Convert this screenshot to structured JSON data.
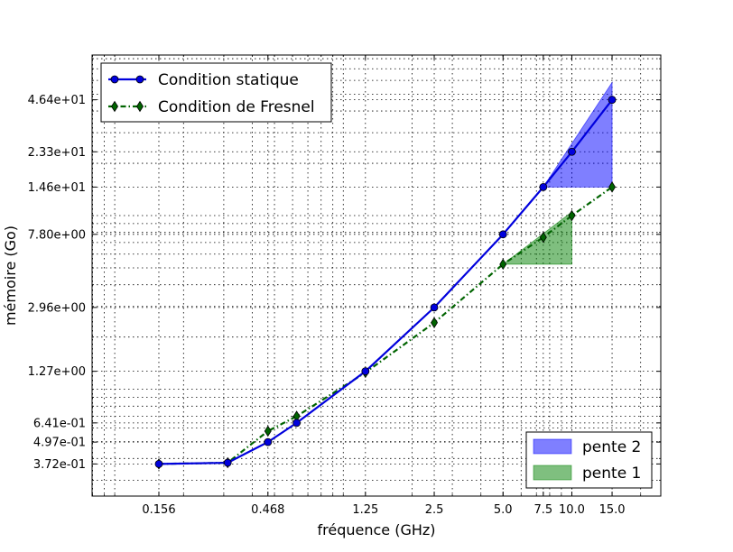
{
  "chart_data": {
    "type": "line",
    "xlabel": "fréquence (GHz)",
    "ylabel": "mémoire (Go)",
    "xscale": "log",
    "yscale": "log",
    "xlim": [
      0.0796,
      24.5
    ],
    "ylim": [
      0.243,
      84
    ],
    "x_ticks": [
      {
        "value": 0.156,
        "label": "0.156"
      },
      {
        "value": 0.468,
        "label": "0.468"
      },
      {
        "value": 1.25,
        "label": "1.25"
      },
      {
        "value": 2.5,
        "label": "2.5"
      },
      {
        "value": 5.0,
        "label": "5.0"
      },
      {
        "value": 7.5,
        "label": "7.5"
      },
      {
        "value": 10.0,
        "label": "10.0"
      },
      {
        "value": 15.0,
        "label": "15.0"
      }
    ],
    "y_ticks": [
      {
        "value": 0.372,
        "label": "3.72e-01"
      },
      {
        "value": 0.497,
        "label": "4.97e-01"
      },
      {
        "value": 0.641,
        "label": "6.41e-01"
      },
      {
        "value": 1.27,
        "label": "1.27e+00"
      },
      {
        "value": 2.96,
        "label": "2.96e+00"
      },
      {
        "value": 7.8,
        "label": "7.80e+00"
      },
      {
        "value": 14.6,
        "label": "1.46e+01"
      },
      {
        "value": 23.3,
        "label": "2.33e+01"
      },
      {
        "value": 46.4,
        "label": "4.64e+01"
      }
    ],
    "grid": true,
    "legend_placement": "top-left",
    "series": [
      {
        "name": "Condition statique",
        "color": "#0000dd",
        "line": "solid",
        "marker": "circle",
        "x": [
          0.156,
          0.312,
          0.468,
          0.625,
          1.25,
          2.5,
          5.0,
          7.5,
          10.0,
          15.0
        ],
        "y": [
          0.372,
          0.378,
          0.497,
          0.641,
          1.27,
          2.96,
          7.8,
          14.6,
          23.3,
          46.4
        ]
      },
      {
        "name": "Condition de Fresnel",
        "color": "#006400",
        "line": "dashdot",
        "marker": "diamond",
        "x": [
          0.156,
          0.312,
          0.468,
          0.625,
          1.25,
          2.5,
          5.0,
          7.5,
          10.0,
          15.0
        ],
        "y": [
          0.372,
          0.378,
          0.575,
          0.7,
          1.25,
          2.42,
          5.25,
          7.5,
          10.0,
          14.6
        ]
      }
    ],
    "slopes": [
      {
        "name": "pente 2",
        "color": "#0000ff",
        "x0": 7.5,
        "x1": 15.0,
        "y0": 14.6,
        "y1": 58.4
      },
      {
        "name": "pente 1",
        "color": "#008000",
        "x0": 5.0,
        "x1": 10.0,
        "y0": 5.25,
        "y1": 10.5
      }
    ],
    "legends": [
      {
        "position": "top-left",
        "entries": [
          "Condition statique",
          "Condition de Fresnel"
        ]
      },
      {
        "position": "bottom-right",
        "entries": [
          "pente 2",
          "pente 1"
        ]
      }
    ]
  }
}
